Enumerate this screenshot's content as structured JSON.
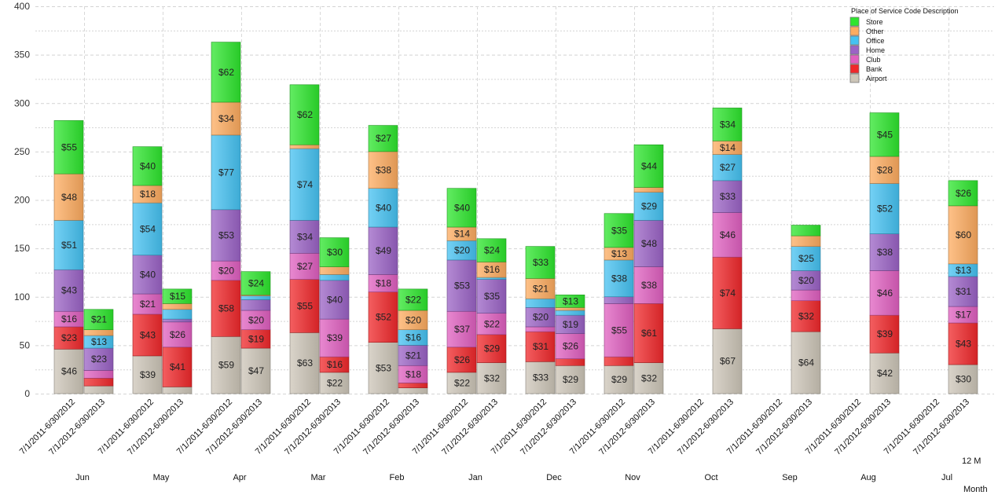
{
  "chart_data": {
    "type": "bar",
    "stacked": true,
    "title": "",
    "xlabel": "Month",
    "xlabel_secondary": "12 M",
    "ylabel": "",
    "ylim": [
      0,
      400
    ],
    "yticks": [
      0,
      50,
      100,
      150,
      200,
      250,
      300,
      350,
      400
    ],
    "grid": true,
    "legend": {
      "title": "Place of Service Code Description",
      "position": "top-right",
      "entries": [
        "Store",
        "Other",
        "Office",
        "Home",
        "Club",
        "Bank",
        "Airport"
      ]
    },
    "value_prefix": "$",
    "months": [
      "Jun",
      "May",
      "Apr",
      "Mar",
      "Feb",
      "Jan",
      "Dec",
      "Nov",
      "Oct",
      "Sep",
      "Aug",
      "Jul"
    ],
    "periods": [
      "7/1/2011-6/30/2012",
      "7/1/2012-6/30/2013"
    ],
    "series_order": [
      "Airport",
      "Bank",
      "Club",
      "Home",
      "Office",
      "Other",
      "Store"
    ],
    "colors": {
      "Airport": "#cdc6b8",
      "Bank": "#f0282b",
      "Club": "#e060c0",
      "Home": "#9b63c6",
      "Office": "#45c2f2",
      "Other": "#fdac60",
      "Store": "#2ee52e"
    },
    "label_min": 12,
    "values": {
      "Jun": {
        "7/1/2011-6/30/2012": {
          "Airport": 46,
          "Bank": 23,
          "Club": 16,
          "Home": 43,
          "Office": 51,
          "Other": 48,
          "Store": 55
        },
        "7/1/2012-6/30/2013": {
          "Airport": 8,
          "Bank": 8,
          "Club": 8,
          "Home": 23,
          "Office": 13,
          "Other": 6,
          "Store": 21
        }
      },
      "May": {
        "7/1/2011-6/30/2012": {
          "Airport": 39,
          "Bank": 43,
          "Club": 21,
          "Home": 40,
          "Office": 54,
          "Other": 18,
          "Store": 40
        },
        "7/1/2012-6/30/2013": {
          "Airport": 7,
          "Bank": 41,
          "Club": 26,
          "Home": 3,
          "Office": 10,
          "Other": 6,
          "Store": 15
        }
      },
      "Apr": {
        "7/1/2011-6/30/2012": {
          "Airport": 59,
          "Bank": 58,
          "Club": 20,
          "Home": 53,
          "Office": 77,
          "Other": 34,
          "Store": 62
        },
        "7/1/2012-6/30/2013": {
          "Airport": 47,
          "Bank": 19,
          "Club": 20,
          "Home": 11,
          "Office": 4,
          "Other": 1,
          "Store": 24
        }
      },
      "Mar": {
        "7/1/2011-6/30/2012": {
          "Airport": 63,
          "Bank": 55,
          "Club": 27,
          "Home": 34,
          "Office": 74,
          "Other": 4,
          "Store": 62
        },
        "7/1/2012-6/30/2013": {
          "Airport": 22,
          "Bank": 16,
          "Club": 39,
          "Home": 40,
          "Office": 6,
          "Other": 8,
          "Store": 30
        }
      },
      "Feb": {
        "7/1/2011-6/30/2012": {
          "Airport": 53,
          "Bank": 52,
          "Club": 18,
          "Home": 49,
          "Office": 40,
          "Other": 38,
          "Store": 27
        },
        "7/1/2012-6/30/2013": {
          "Airport": 6,
          "Bank": 5,
          "Club": 18,
          "Home": 21,
          "Office": 16,
          "Other": 20,
          "Store": 22
        }
      },
      "Jan": {
        "7/1/2011-6/30/2012": {
          "Airport": 22,
          "Bank": 26,
          "Club": 37,
          "Home": 53,
          "Office": 20,
          "Other": 14,
          "Store": 40
        },
        "7/1/2012-6/30/2013": {
          "Airport": 32,
          "Bank": 29,
          "Club": 22,
          "Home": 35,
          "Office": 2,
          "Other": 16,
          "Store": 24
        }
      },
      "Dec": {
        "7/1/2011-6/30/2012": {
          "Airport": 33,
          "Bank": 31,
          "Club": 5,
          "Home": 20,
          "Office": 9,
          "Other": 21,
          "Store": 33
        },
        "7/1/2012-6/30/2013": {
          "Airport": 29,
          "Bank": 7,
          "Club": 26,
          "Home": 19,
          "Office": 5,
          "Other": 3,
          "Store": 13
        }
      },
      "Nov": {
        "7/1/2011-6/30/2012": {
          "Airport": 29,
          "Bank": 9,
          "Club": 55,
          "Home": 7,
          "Office": 38,
          "Other": 13,
          "Store": 35
        },
        "7/1/2012-6/30/2013": {
          "Airport": 32,
          "Bank": 61,
          "Club": 38,
          "Home": 48,
          "Office": 29,
          "Other": 5,
          "Store": 44
        }
      },
      "Oct": {
        "7/1/2011-6/30/2012": {},
        "7/1/2012-6/30/2013": {
          "Airport": 67,
          "Bank": 74,
          "Club": 46,
          "Home": 33,
          "Office": 27,
          "Other": 14,
          "Store": 34
        }
      },
      "Sep": {
        "7/1/2011-6/30/2012": {},
        "7/1/2012-6/30/2013": {
          "Airport": 64,
          "Bank": 32,
          "Club": 11,
          "Home": 20,
          "Office": 25,
          "Other": 11,
          "Store": 11
        }
      },
      "Aug": {
        "7/1/2011-6/30/2012": {},
        "7/1/2012-6/30/2013": {
          "Airport": 42,
          "Bank": 39,
          "Club": 46,
          "Home": 38,
          "Office": 52,
          "Other": 28,
          "Store": 45
        }
      },
      "Jul": {
        "7/1/2011-6/30/2012": {},
        "7/1/2012-6/30/2013": {
          "Airport": 30,
          "Bank": 43,
          "Club": 17,
          "Home": 31,
          "Office": 13,
          "Other": 60,
          "Store": 26
        }
      }
    }
  }
}
